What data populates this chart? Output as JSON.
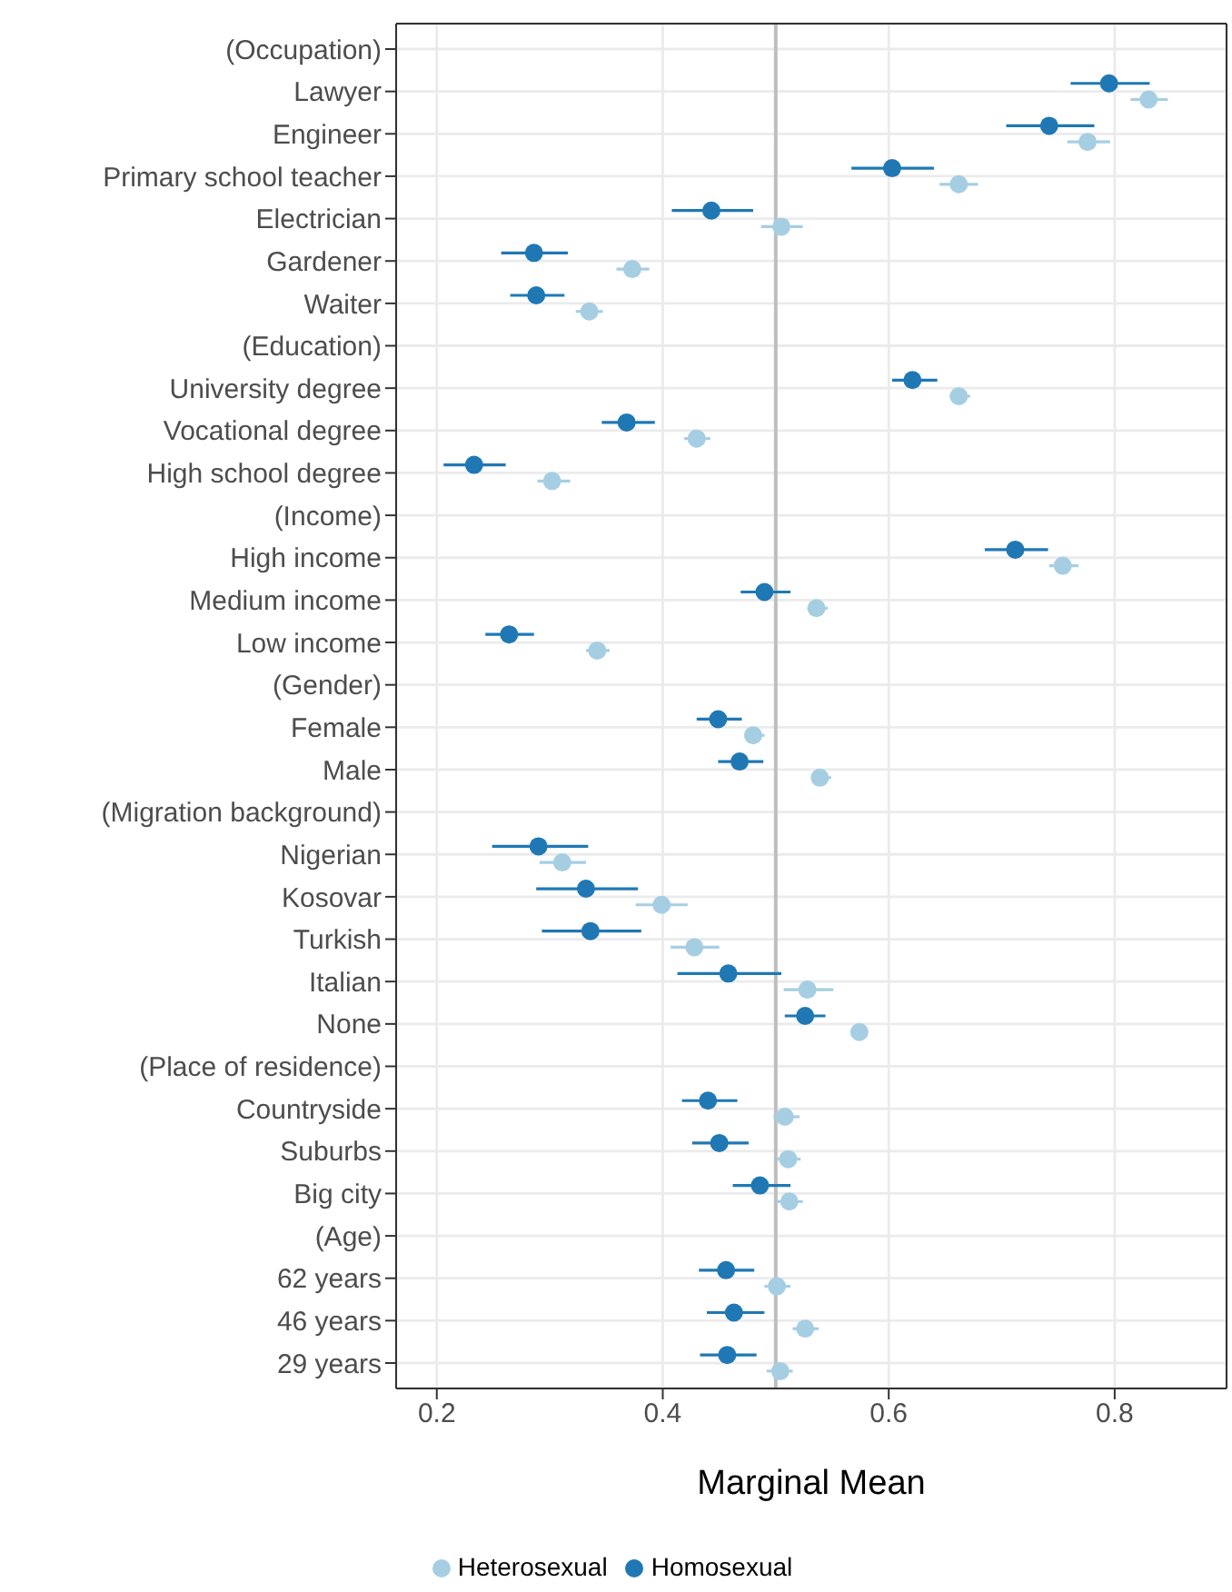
{
  "chart_data": {
    "type": "scatter",
    "orientation": "horizontal",
    "xlabel": "Marginal Mean",
    "categories": [
      "(Occupation)",
      "Lawyer",
      "Engineer",
      "Primary school teacher",
      "Electrician",
      "Gardener",
      "Waiter",
      "(Education)",
      "University degree",
      "Vocational degree",
      "High school degree",
      "(Income)",
      "High income",
      "Medium income",
      "Low income",
      "(Gender)",
      "Female",
      "Male",
      "(Migration background)",
      "Nigerian",
      "Kosovar",
      "Turkish",
      "Italian",
      "None",
      "(Place of residence)",
      "Countryside",
      "Suburbs",
      "Big city",
      "(Age)",
      "62 years",
      "46 years",
      "29 years"
    ],
    "series": [
      {
        "name": "Heterosexual",
        "color": "#a6cee3",
        "values": [
          null,
          0.83,
          0.776,
          0.662,
          0.505,
          0.373,
          0.335,
          null,
          0.662,
          0.43,
          0.302,
          null,
          0.754,
          0.536,
          0.342,
          null,
          0.48,
          0.539,
          null,
          0.311,
          0.399,
          0.428,
          0.528,
          0.574,
          null,
          0.508,
          0.511,
          0.512,
          null,
          0.501,
          0.526,
          0.504
        ],
        "errors": [
          null,
          [
            0.814,
            0.847
          ],
          [
            0.758,
            0.796
          ],
          [
            0.645,
            0.679
          ],
          [
            0.487,
            0.524
          ],
          [
            0.359,
            0.388
          ],
          [
            0.323,
            0.347
          ],
          null,
          [
            0.654,
            0.672
          ],
          [
            0.419,
            0.442
          ],
          [
            0.289,
            0.318
          ],
          null,
          [
            0.742,
            0.768
          ],
          [
            0.528,
            0.546
          ],
          [
            0.332,
            0.353
          ],
          null,
          [
            0.472,
            0.49
          ],
          [
            0.532,
            0.549
          ],
          null,
          [
            0.291,
            0.332
          ],
          [
            0.376,
            0.422
          ],
          [
            0.407,
            0.45
          ],
          [
            0.507,
            0.551
          ],
          [
            0.567,
            0.581
          ],
          null,
          [
            0.498,
            0.521
          ],
          [
            0.501,
            0.522
          ],
          [
            0.501,
            0.524
          ],
          null,
          [
            0.49,
            0.513
          ],
          [
            0.515,
            0.538
          ],
          [
            0.492,
            0.515
          ]
        ]
      },
      {
        "name": "Homosexual",
        "color": "#1f78b4",
        "values": [
          null,
          0.795,
          0.742,
          0.603,
          0.443,
          0.286,
          0.288,
          null,
          0.621,
          0.368,
          0.233,
          null,
          0.712,
          0.49,
          0.264,
          null,
          0.449,
          0.468,
          null,
          0.29,
          0.332,
          0.336,
          0.458,
          0.526,
          null,
          0.44,
          0.45,
          0.486,
          null,
          0.456,
          0.463,
          0.457
        ],
        "errors": [
          null,
          [
            0.761,
            0.831
          ],
          [
            0.704,
            0.782
          ],
          [
            0.567,
            0.64
          ],
          [
            0.408,
            0.48
          ],
          [
            0.257,
            0.316
          ],
          [
            0.265,
            0.313
          ],
          null,
          [
            0.603,
            0.643
          ],
          [
            0.346,
            0.393
          ],
          [
            0.206,
            0.261
          ],
          null,
          [
            0.685,
            0.741
          ],
          [
            0.469,
            0.513
          ],
          [
            0.243,
            0.286
          ],
          null,
          [
            0.43,
            0.47
          ],
          [
            0.449,
            0.489
          ],
          null,
          [
            0.249,
            0.334
          ],
          [
            0.288,
            0.378
          ],
          [
            0.293,
            0.381
          ],
          [
            0.413,
            0.505
          ],
          [
            0.508,
            0.544
          ],
          null,
          [
            0.417,
            0.466
          ],
          [
            0.426,
            0.476
          ],
          [
            0.462,
            0.513
          ],
          null,
          [
            0.432,
            0.481
          ],
          [
            0.439,
            0.49
          ],
          [
            0.433,
            0.483
          ]
        ]
      }
    ],
    "xlim": [
      0.164,
      0.899
    ],
    "xticks": [
      0.2,
      0.4,
      0.6,
      0.8
    ],
    "ref_lines": [
      {
        "axis": "x",
        "value": 0.5,
        "color": "#bebebe"
      }
    ],
    "grid": true,
    "legend": "bottom",
    "marker": "circle"
  }
}
